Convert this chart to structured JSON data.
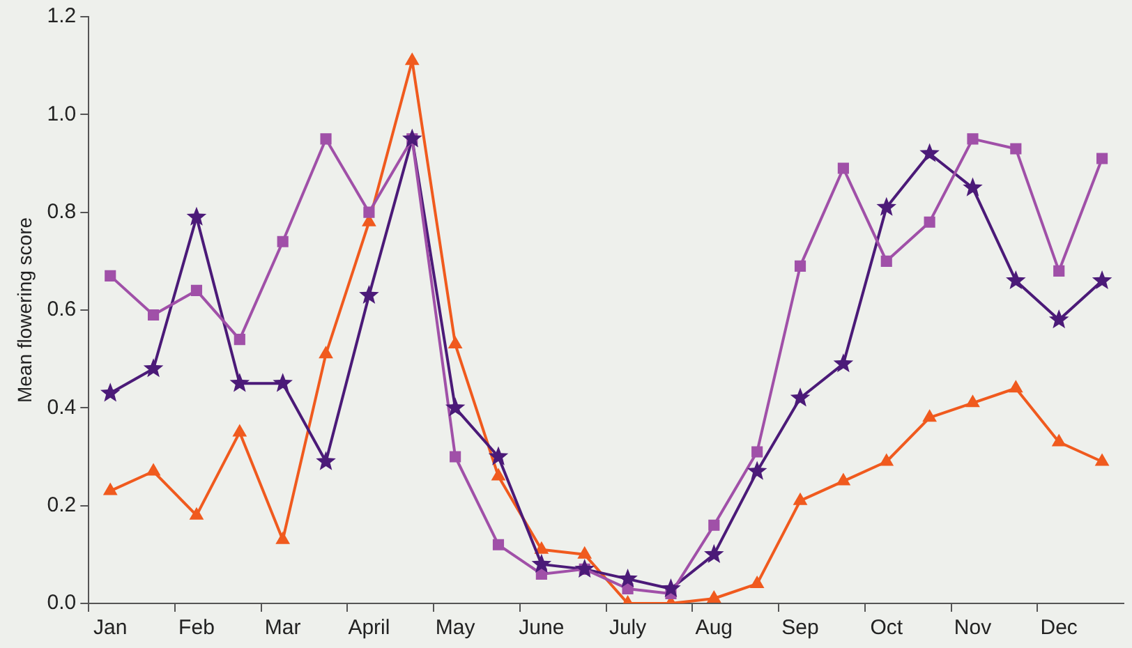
{
  "chart_data": {
    "type": "line",
    "ylabel": "Mean flowering score",
    "categories": [
      "Jan",
      null,
      "Feb",
      null,
      "Mar",
      null,
      "April",
      null,
      "May",
      null,
      "June",
      null,
      "July",
      null,
      "Aug",
      null,
      "Sep",
      null,
      "Oct",
      null,
      "Nov",
      null,
      "Dec",
      null
    ],
    "ylim": [
      0,
      1.2
    ],
    "yticks": [
      {
        "value": 0,
        "label": "0.0"
      },
      {
        "value": 0.2,
        "label": "0.2"
      },
      {
        "value": 0.4,
        "label": "0.4"
      },
      {
        "value": 0.6,
        "label": "0.6"
      },
      {
        "value": 0.8,
        "label": "0.8"
      },
      {
        "value": 1,
        "label": "1.0"
      },
      {
        "value": 1.2,
        "label": "1.2"
      }
    ],
    "grid": false,
    "legend": false,
    "line_style": "solid",
    "series": [
      {
        "color": "#a050a8",
        "marker": "square",
        "values": [
          0.67,
          0.59,
          0.64,
          0.54,
          0.74,
          0.95,
          0.8,
          0.95,
          0.3,
          0.12,
          0.06,
          0.07,
          0.03,
          0.02,
          0.16,
          0.31,
          0.69,
          0.89,
          0.7,
          0.78,
          0.95,
          0.93,
          0.68,
          0.91
        ]
      },
      {
        "color": "#4b1a78",
        "marker": "star",
        "values": [
          0.43,
          0.48,
          0.79,
          0.45,
          0.45,
          0.29,
          0.63,
          0.95,
          0.4,
          0.3,
          0.08,
          0.07,
          0.05,
          0.03,
          0.1,
          0.27,
          0.42,
          0.49,
          0.81,
          0.92,
          0.85,
          0.66,
          0.58,
          0.66
        ]
      },
      {
        "color": "#f05a1e",
        "marker": "triangle",
        "values": [
          0.23,
          0.27,
          0.18,
          0.35,
          0.13,
          0.51,
          0.78,
          1.11,
          0.53,
          0.26,
          0.11,
          0.1,
          0,
          0,
          0.01,
          0.04,
          0.21,
          0.25,
          0.29,
          0.38,
          0.41,
          0.44,
          0.33,
          0.29
        ]
      }
    ]
  }
}
